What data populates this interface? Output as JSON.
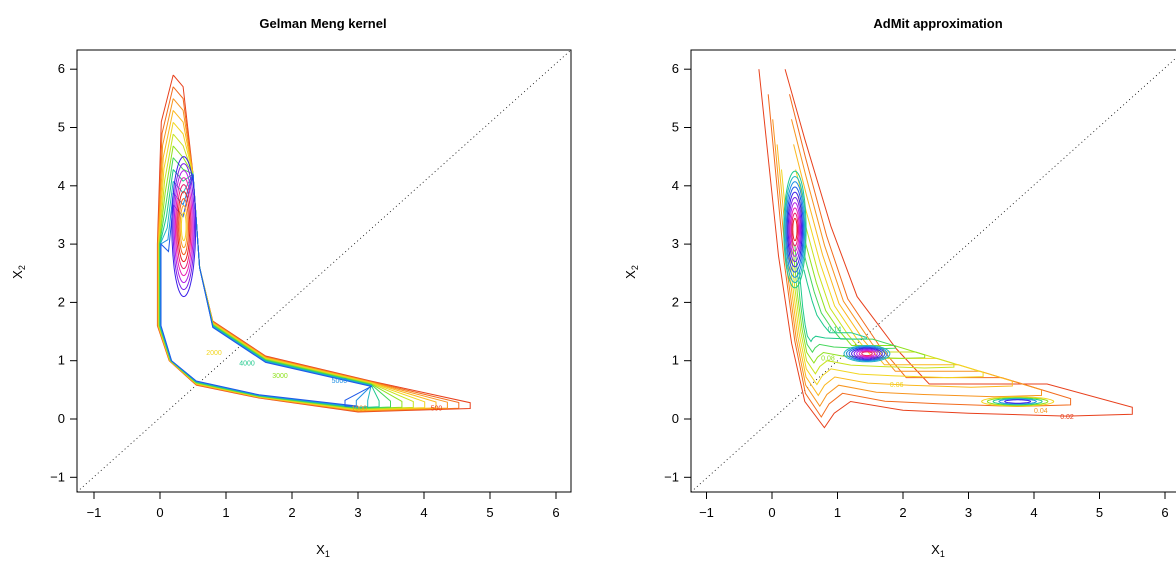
{
  "chart_data": [
    {
      "type": "contour",
      "title": "Gelman Meng kernel",
      "xlabel": "X",
      "xlabel_sub": "1",
      "ylabel": "X",
      "ylabel_sub": "2",
      "xlim": [
        -1.2,
        6.2
      ],
      "ylim": [
        -1.2,
        6.2
      ],
      "xticks": [
        -1,
        0,
        1,
        2,
        3,
        4,
        5,
        6
      ],
      "yticks": [
        -1,
        0,
        1,
        2,
        3,
        4,
        5,
        6
      ],
      "tick_labels": [
        "−1",
        "0",
        "1",
        "2",
        "3",
        "4",
        "5",
        "6"
      ],
      "reference_line": "y = x (dotted)",
      "contour_labels": [
        "500",
        "1000",
        "2000",
        "3000",
        "4000",
        "5000"
      ],
      "colors": [
        "#e8401c",
        "#f26b1d",
        "#f7941e",
        "#fbb81e",
        "#f2d51e",
        "#c8e31e",
        "#8fe21e",
        "#45d65a",
        "#1ec98c",
        "#1eb6c3",
        "#1e8ee3",
        "#1e5ae8",
        "#3a1ee8",
        "#7a1ee8",
        "#b41ee8",
        "#e81eb4",
        "#e81e6e",
        "#e8201e",
        "#f25e1e",
        "#f8a01e",
        "#f5d21e"
      ]
    },
    {
      "type": "contour",
      "title": "AdMit approximation",
      "xlabel": "X",
      "xlabel_sub": "1",
      "ylabel": "X",
      "ylabel_sub": "2",
      "xlim": [
        -1.2,
        6.2
      ],
      "ylim": [
        -1.2,
        6.2
      ],
      "xticks": [
        -1,
        0,
        1,
        2,
        3,
        4,
        5,
        6
      ],
      "yticks": [
        -1,
        0,
        1,
        2,
        3,
        4,
        5,
        6
      ],
      "tick_labels": [
        "−1",
        "0",
        "1",
        "2",
        "3",
        "4",
        "5",
        "6"
      ],
      "reference_line": "y = x (dotted)",
      "contour_labels": [
        "0.02",
        "0.04",
        "0.06",
        "0.08",
        "0.14"
      ],
      "colors": [
        "#e8401c",
        "#f26b1d",
        "#f7941e",
        "#fbb81e",
        "#f2d51e",
        "#c8e31e",
        "#8fe21e",
        "#45d65a",
        "#1ec98c",
        "#1eb6c3",
        "#1e8ee3",
        "#1e5ae8",
        "#3a1ee8",
        "#7a1ee8",
        "#b41ee8",
        "#e81eb4",
        "#e81e6e",
        "#e8201e",
        "#f25e1e",
        "#f8a01e",
        "#f5d21e"
      ]
    }
  ]
}
